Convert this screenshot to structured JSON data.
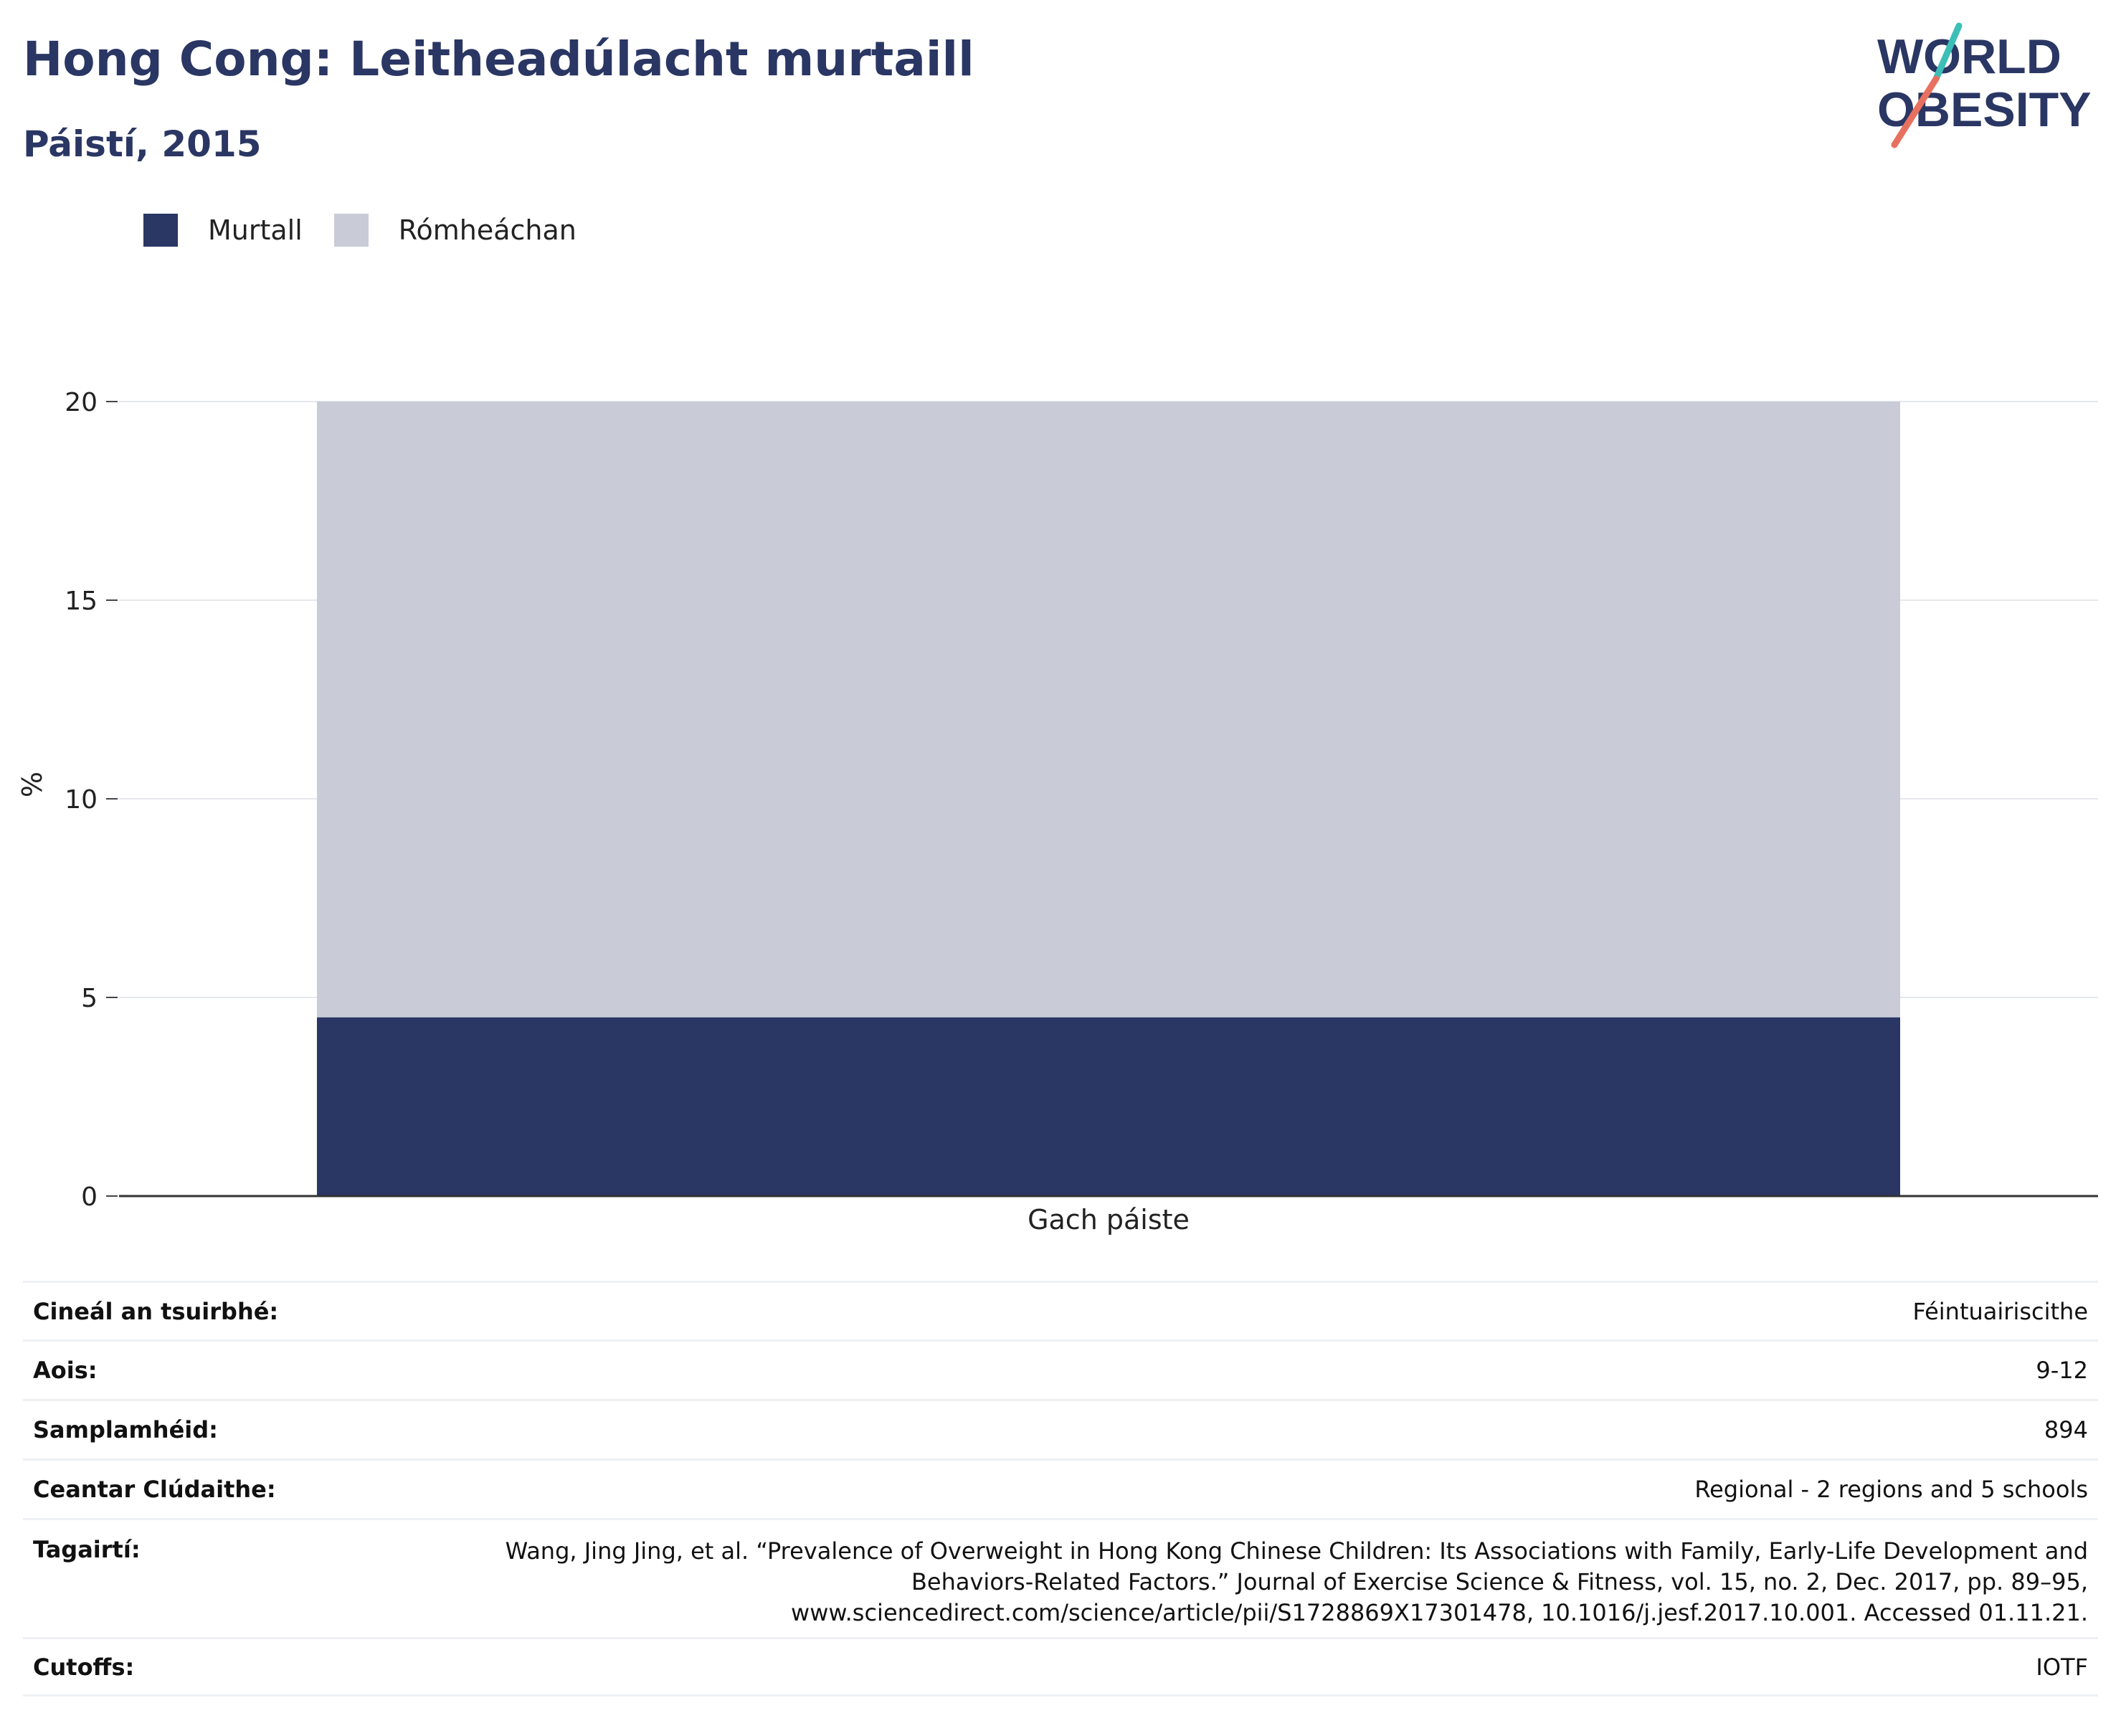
{
  "header": {
    "title": "Hong Cong: Leitheadúlacht murtaill",
    "subtitle": "Páistí, 2015"
  },
  "logo": {
    "line1": "WORLD",
    "line2": "OBESITY",
    "colors": {
      "text": "#2a3663",
      "slash_top": "#3bbfb7",
      "slash_bottom": "#e8705f"
    }
  },
  "legend": [
    {
      "label": "Murtall",
      "color": "#2a3663"
    },
    {
      "label": "Rómheáchan",
      "color": "#c9ccd7"
    }
  ],
  "chart_data": {
    "type": "bar",
    "stacked": true,
    "categories": [
      "Gach páiste"
    ],
    "series": [
      {
        "name": "Murtall",
        "values": [
          4.5
        ],
        "color": "#2a3663"
      },
      {
        "name": "Rómheáchan",
        "values": [
          15.5
        ],
        "color": "#c9ccd7"
      }
    ],
    "ylabel": "%",
    "xlabel": "",
    "ylim": [
      0,
      20
    ],
    "yticks": [
      0,
      5,
      10,
      15,
      20
    ],
    "grid": true,
    "legend_position": "top-left"
  },
  "details": {
    "survey_type": {
      "key": "Cineál an tsuirbhé:",
      "value": "Féintuairiscithe"
    },
    "age": {
      "key": "Aois:",
      "value": "9-12"
    },
    "sample_size": {
      "key": "Samplamhéid:",
      "value": "894"
    },
    "area_covered": {
      "key": "Ceantar Clúdaithe:",
      "value": "Regional - 2 regions and 5 schools"
    },
    "references": {
      "key": "Tagairtí:",
      "value": "Wang, Jing Jing, et al. “Prevalence of Overweight in Hong Kong Chinese Children: Its Associations with Family, Early-Life Development and Behaviors-Related Factors.” Journal of Exercise Science & Fitness, vol. 15, no. 2, Dec. 2017, pp. 89–95, www.sciencedirect.com/science/article/pii/S1728869X17301478, 10.1016/j.jesf.2017.10.001. Accessed 01.11.21."
    },
    "cutoffs": {
      "key": "Cutoffs:",
      "value": "IOTF"
    }
  }
}
